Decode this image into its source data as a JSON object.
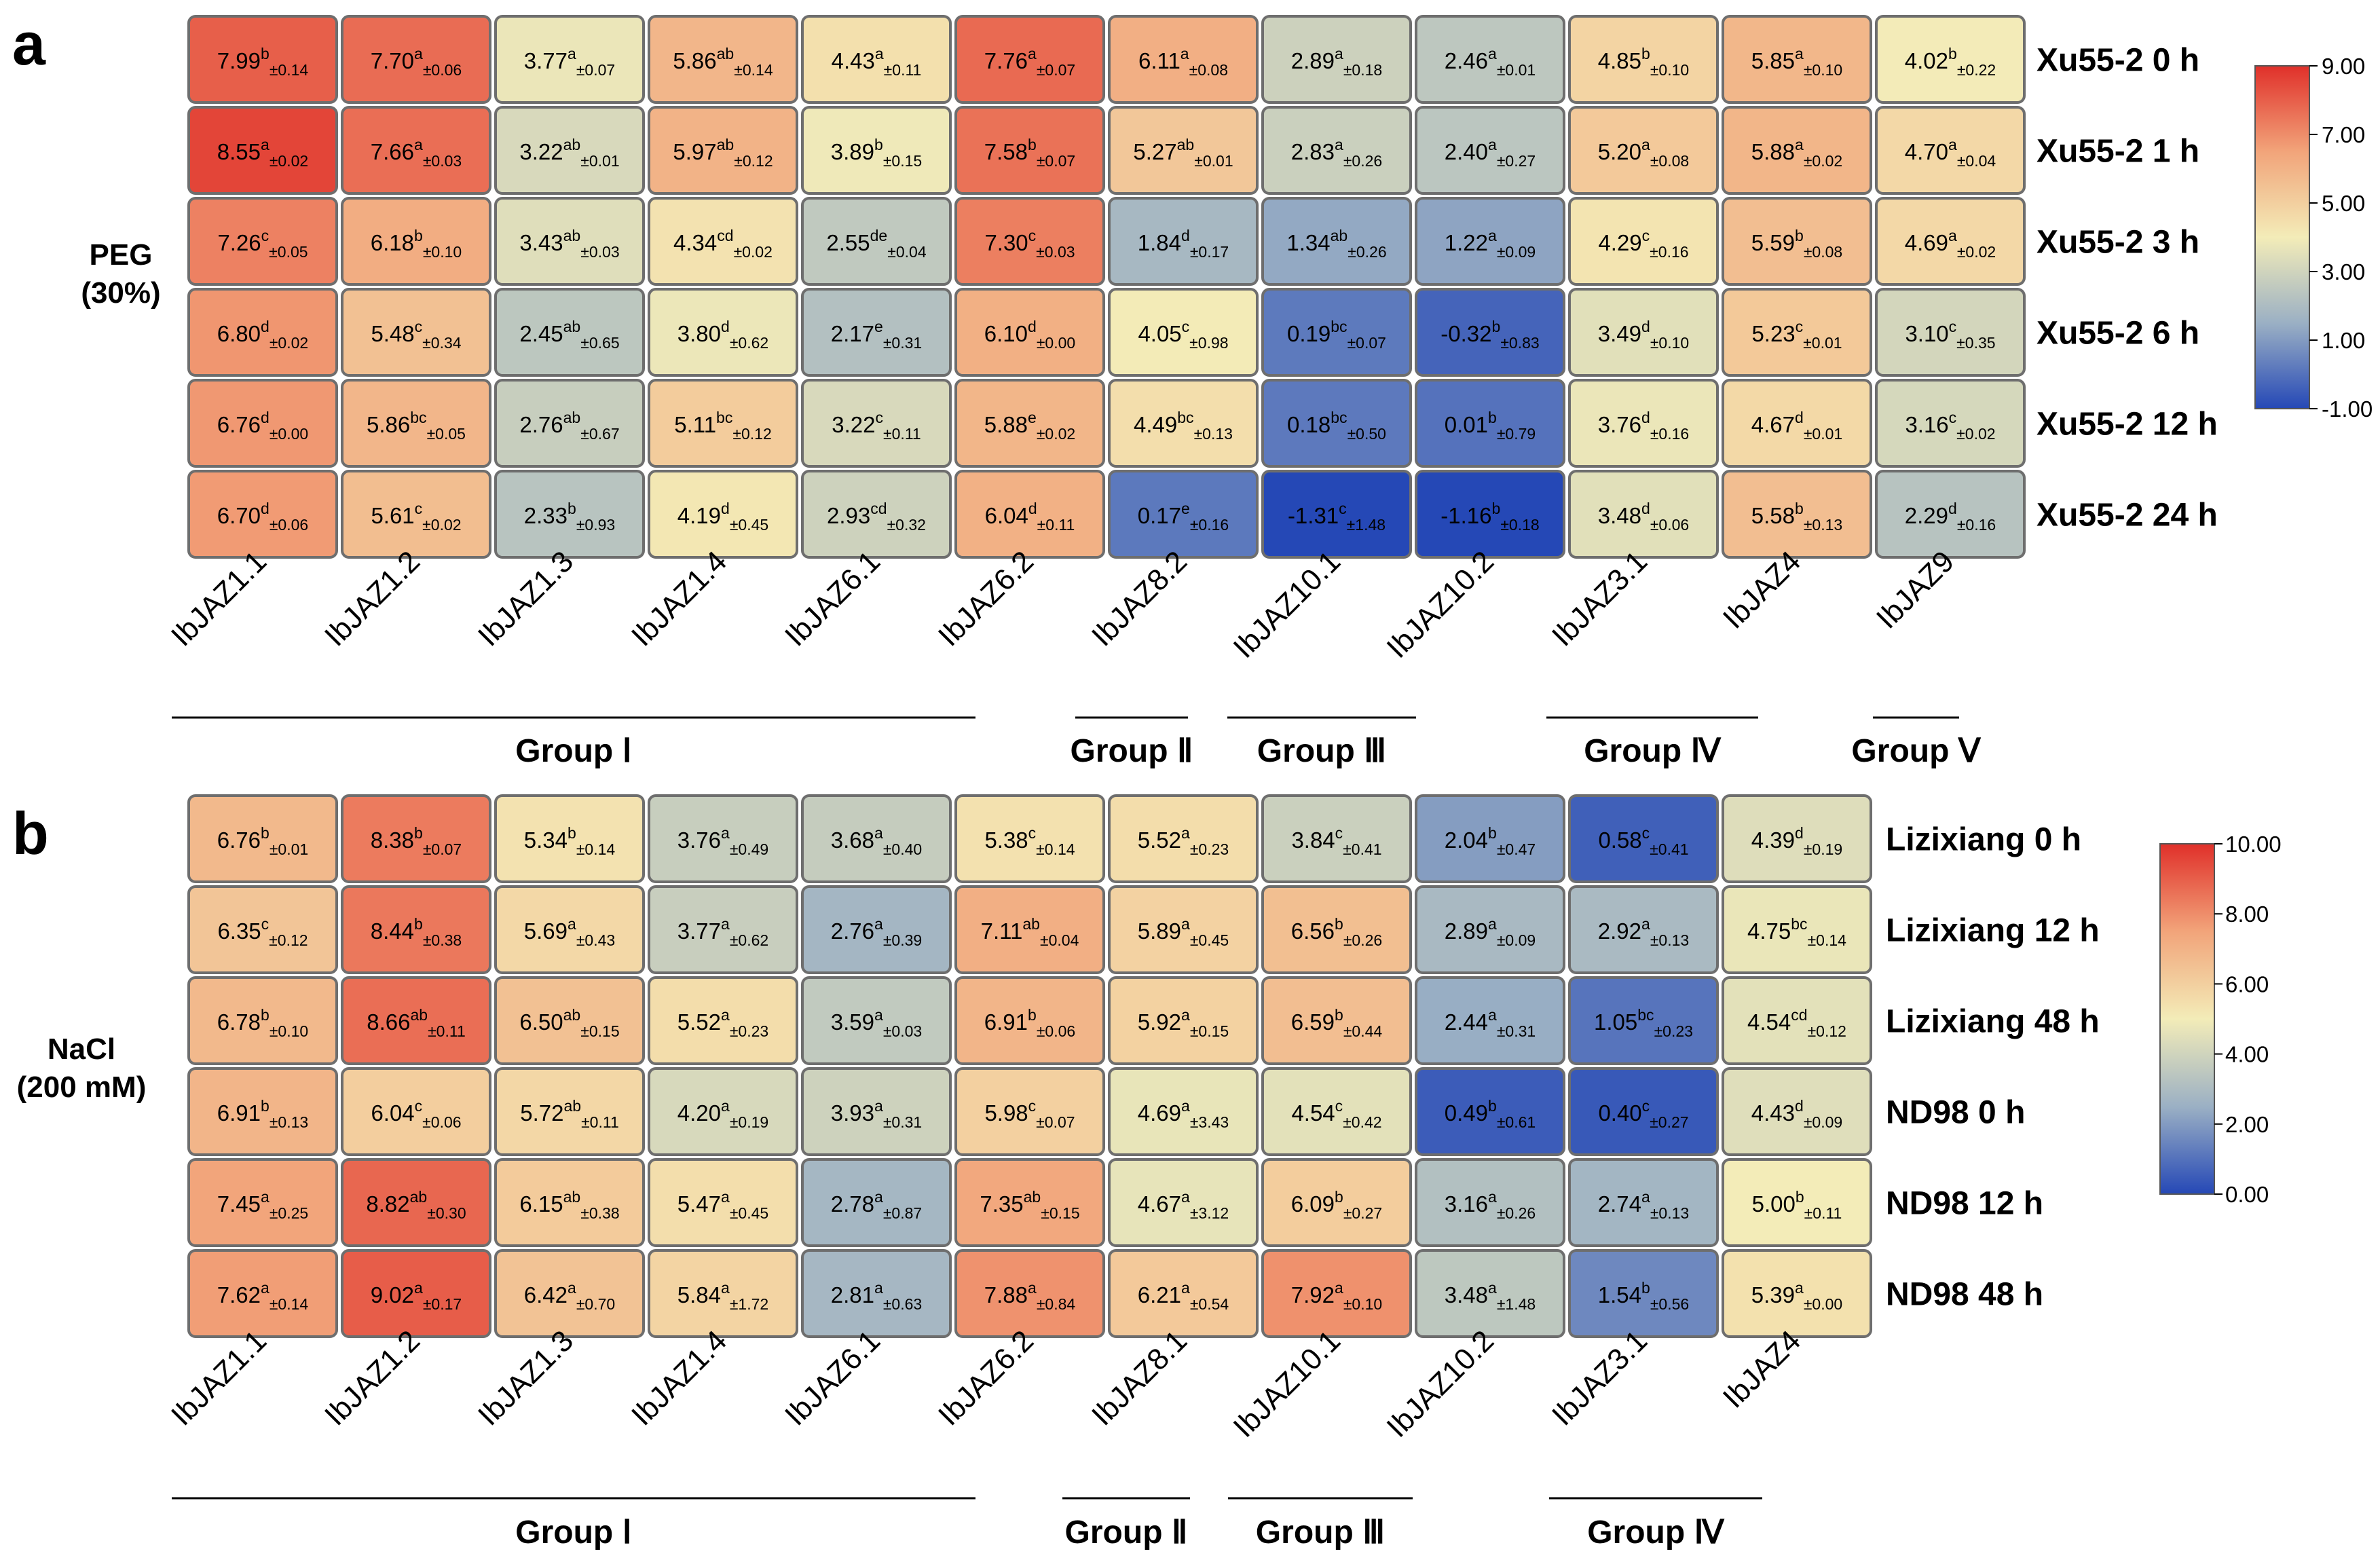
{
  "chart_data": [
    {
      "type": "heatmap",
      "panel": "a",
      "condition": [
        "PEG",
        "(30%)"
      ],
      "genes": [
        "IbJAZ1.1",
        "IbJAZ1.2",
        "IbJAZ1.3",
        "IbJAZ1.4",
        "IbJAZ6.1",
        "IbJAZ6.2",
        "IbJAZ8.2",
        "IbJAZ10.1",
        "IbJAZ10.2",
        "IbJAZ3.1",
        "IbJAZ4",
        "IbJAZ9"
      ],
      "rows": [
        "Xu55-2 0 h",
        "Xu55-2 1 h",
        "Xu55-2 3 h",
        "Xu55-2 6 h",
        "Xu55-2 12 h",
        "Xu55-2 24 h"
      ],
      "values": [
        [
          [
            7.99,
            "b",
            "0.14"
          ],
          [
            7.7,
            "a",
            "0.06"
          ],
          [
            3.77,
            "a",
            "0.07"
          ],
          [
            5.86,
            "ab",
            "0.14"
          ],
          [
            4.43,
            "a",
            "0.11"
          ],
          [
            7.76,
            "a",
            "0.07"
          ],
          [
            6.11,
            "a",
            "0.08"
          ],
          [
            2.89,
            "a",
            "0.18"
          ],
          [
            2.46,
            "a",
            "0.01"
          ],
          [
            4.85,
            "b",
            "0.10"
          ],
          [
            5.85,
            "a",
            "0.10"
          ],
          [
            4.02,
            "b",
            "0.22"
          ]
        ],
        [
          [
            8.55,
            "a",
            "0.02"
          ],
          [
            7.66,
            "a",
            "0.03"
          ],
          [
            3.22,
            "ab",
            "0.01"
          ],
          [
            5.97,
            "ab",
            "0.12"
          ],
          [
            3.89,
            "b",
            "0.15"
          ],
          [
            7.58,
            "b",
            "0.07"
          ],
          [
            5.27,
            "ab",
            "0.01"
          ],
          [
            2.83,
            "a",
            "0.26"
          ],
          [
            2.4,
            "a",
            "0.27"
          ],
          [
            5.2,
            "a",
            "0.08"
          ],
          [
            5.88,
            "a",
            "0.02"
          ],
          [
            4.7,
            "a",
            "0.04"
          ]
        ],
        [
          [
            7.26,
            "c",
            "0.05"
          ],
          [
            6.18,
            "b",
            "0.10"
          ],
          [
            3.43,
            "ab",
            "0.03"
          ],
          [
            4.34,
            "cd",
            "0.02"
          ],
          [
            2.55,
            "de",
            "0.04"
          ],
          [
            7.3,
            "c",
            "0.03"
          ],
          [
            1.84,
            "d",
            "0.17"
          ],
          [
            1.34,
            "ab",
            "0.26"
          ],
          [
            1.22,
            "a",
            "0.09"
          ],
          [
            4.29,
            "c",
            "0.16"
          ],
          [
            5.59,
            "b",
            "0.08"
          ],
          [
            4.69,
            "a",
            "0.02"
          ]
        ],
        [
          [
            6.8,
            "d",
            "0.02"
          ],
          [
            5.48,
            "c",
            "0.34"
          ],
          [
            2.45,
            "ab",
            "0.65"
          ],
          [
            3.8,
            "d",
            "0.62"
          ],
          [
            2.17,
            "e",
            "0.31"
          ],
          [
            6.1,
            "d",
            "0.00"
          ],
          [
            4.05,
            "c",
            "0.98"
          ],
          [
            0.19,
            "bc",
            "0.07"
          ],
          [
            -0.32,
            "b",
            "0.83"
          ],
          [
            3.49,
            "d",
            "0.10"
          ],
          [
            5.23,
            "c",
            "0.01"
          ],
          [
            3.1,
            "c",
            "0.35"
          ]
        ],
        [
          [
            6.76,
            "d",
            "0.00"
          ],
          [
            5.86,
            "bc",
            "0.05"
          ],
          [
            2.76,
            "ab",
            "0.67"
          ],
          [
            5.11,
            "bc",
            "0.12"
          ],
          [
            3.22,
            "c",
            "0.11"
          ],
          [
            5.88,
            "e",
            "0.02"
          ],
          [
            4.49,
            "bc",
            "0.13"
          ],
          [
            0.18,
            "bc",
            "0.50"
          ],
          [
            0.01,
            "b",
            "0.79"
          ],
          [
            3.76,
            "d",
            "0.16"
          ],
          [
            4.67,
            "d",
            "0.01"
          ],
          [
            3.16,
            "c",
            "0.02"
          ]
        ],
        [
          [
            6.7,
            "d",
            "0.06"
          ],
          [
            5.61,
            "c",
            "0.02"
          ],
          [
            2.33,
            "b",
            "0.93"
          ],
          [
            4.19,
            "d",
            "0.45"
          ],
          [
            2.93,
            "cd",
            "0.32"
          ],
          [
            6.04,
            "d",
            "0.11"
          ],
          [
            0.17,
            "e",
            "0.16"
          ],
          [
            -1.31,
            "c",
            "1.48"
          ],
          [
            -1.16,
            "b",
            "0.18"
          ],
          [
            3.48,
            "d",
            "0.06"
          ],
          [
            5.58,
            "b",
            "0.13"
          ],
          [
            2.29,
            "d",
            "0.16"
          ]
        ]
      ],
      "groups": [
        {
          "label": "Group Ⅰ",
          "genes": [
            "IbJAZ1.1",
            "IbJAZ1.2",
            "IbJAZ1.3",
            "IbJAZ1.4",
            "IbJAZ6.1",
            "IbJAZ6.2"
          ]
        },
        {
          "label": "Group Ⅱ",
          "genes": [
            "IbJAZ8.2"
          ]
        },
        {
          "label": "Group Ⅲ",
          "genes": [
            "IbJAZ10.1",
            "IbJAZ10.2"
          ]
        },
        {
          "label": "Group Ⅳ",
          "genes": [
            "IbJAZ3.1",
            "IbJAZ4"
          ]
        },
        {
          "label": "Group Ⅴ",
          "genes": [
            "IbJAZ9"
          ]
        }
      ],
      "colorbar": {
        "min": -1.0,
        "max": 9.0,
        "ticks": [
          "9.00",
          "7.00",
          "5.00",
          "3.00",
          "1.00",
          "-1.00"
        ],
        "tick_values": [
          9,
          7,
          5,
          3,
          1,
          -1
        ]
      }
    },
    {
      "type": "heatmap",
      "panel": "b",
      "condition": [
        "NaCl",
        "(200 mM)"
      ],
      "genes": [
        "IbJAZ1.1",
        "IbJAZ1.2",
        "IbJAZ1.3",
        "IbJAZ1.4",
        "IbJAZ6.1",
        "IbJAZ6.2",
        "IbJAZ8.1",
        "IbJAZ10.1",
        "IbJAZ10.2",
        "IbJAZ3.1",
        "IbJAZ4"
      ],
      "rows": [
        "Lizixiang 0 h",
        "Lizixiang 12 h",
        "Lizixiang 48 h",
        "ND98 0 h",
        "ND98 12 h",
        "ND98 48 h"
      ],
      "values": [
        [
          [
            6.76,
            "b",
            "0.01"
          ],
          [
            8.38,
            "b",
            "0.07"
          ],
          [
            5.34,
            "b",
            "0.14"
          ],
          [
            3.76,
            "a",
            "0.49"
          ],
          [
            3.68,
            "a",
            "0.40"
          ],
          [
            5.38,
            "c",
            "0.14"
          ],
          [
            5.52,
            "a",
            "0.23"
          ],
          [
            3.84,
            "c",
            "0.41"
          ],
          [
            2.04,
            "b",
            "0.47"
          ],
          [
            0.58,
            "c",
            "0.41"
          ],
          [
            4.39,
            "d",
            "0.19"
          ]
        ],
        [
          [
            6.35,
            "c",
            "0.12"
          ],
          [
            8.44,
            "b",
            "0.38"
          ],
          [
            5.69,
            "a",
            "0.43"
          ],
          [
            3.77,
            "a",
            "0.62"
          ],
          [
            2.76,
            "a",
            "0.39"
          ],
          [
            7.11,
            "ab",
            "0.04"
          ],
          [
            5.89,
            "a",
            "0.45"
          ],
          [
            6.56,
            "b",
            "0.26"
          ],
          [
            2.89,
            "a",
            "0.09"
          ],
          [
            2.92,
            "a",
            "0.13"
          ],
          [
            4.75,
            "bc",
            "0.14"
          ]
        ],
        [
          [
            6.78,
            "b",
            "0.10"
          ],
          [
            8.66,
            "ab",
            "0.11"
          ],
          [
            6.5,
            "ab",
            "0.15"
          ],
          [
            5.52,
            "a",
            "0.23"
          ],
          [
            3.59,
            "a",
            "0.03"
          ],
          [
            6.91,
            "b",
            "0.06"
          ],
          [
            5.92,
            "a",
            "0.15"
          ],
          [
            6.59,
            "b",
            "0.44"
          ],
          [
            2.44,
            "a",
            "0.31"
          ],
          [
            1.05,
            "bc",
            "0.23"
          ],
          [
            4.54,
            "cd",
            "0.12"
          ]
        ],
        [
          [
            6.91,
            "b",
            "0.13"
          ],
          [
            6.04,
            "c",
            "0.06"
          ],
          [
            5.72,
            "ab",
            "0.11"
          ],
          [
            4.2,
            "a",
            "0.19"
          ],
          [
            3.93,
            "a",
            "0.31"
          ],
          [
            5.98,
            "c",
            "0.07"
          ],
          [
            4.69,
            "a",
            "3.43"
          ],
          [
            4.54,
            "c",
            "0.42"
          ],
          [
            0.49,
            "b",
            "0.61"
          ],
          [
            0.4,
            "c",
            "0.27"
          ],
          [
            4.43,
            "d",
            "0.09"
          ]
        ],
        [
          [
            7.45,
            "a",
            "0.25"
          ],
          [
            8.82,
            "ab",
            "0.30"
          ],
          [
            6.15,
            "ab",
            "0.38"
          ],
          [
            5.47,
            "a",
            "0.45"
          ],
          [
            2.78,
            "a",
            "0.87"
          ],
          [
            7.35,
            "ab",
            "0.15"
          ],
          [
            4.67,
            "a",
            "3.12"
          ],
          [
            6.09,
            "b",
            "0.27"
          ],
          [
            3.16,
            "a",
            "0.26"
          ],
          [
            2.74,
            "a",
            "0.13"
          ],
          [
            5.0,
            "b",
            "0.11"
          ]
        ],
        [
          [
            7.62,
            "a",
            "0.14"
          ],
          [
            9.02,
            "a",
            "0.17"
          ],
          [
            6.42,
            "a",
            "0.70"
          ],
          [
            5.84,
            "a",
            "1.72"
          ],
          [
            2.81,
            "a",
            "0.63"
          ],
          [
            7.88,
            "a",
            "0.84"
          ],
          [
            6.21,
            "a",
            "0.54"
          ],
          [
            7.92,
            "a",
            "0.10"
          ],
          [
            3.48,
            "a",
            "1.48"
          ],
          [
            1.54,
            "b",
            "0.56"
          ],
          [
            5.39,
            "a",
            "0.00"
          ]
        ]
      ],
      "groups": [
        {
          "label": "Group Ⅰ",
          "genes": [
            "IbJAZ1.1",
            "IbJAZ1.2",
            "IbJAZ1.3",
            "IbJAZ1.4",
            "IbJAZ6.1",
            "IbJAZ6.2"
          ]
        },
        {
          "label": "Group Ⅱ",
          "genes": [
            "IbJAZ8.1"
          ]
        },
        {
          "label": "Group Ⅲ",
          "genes": [
            "IbJAZ10.1"
          ]
        },
        {
          "label": "Group Ⅳ",
          "genes": [
            "IbJAZ10.2",
            "IbJAZ3.1",
            "IbJAZ4"
          ]
        }
      ],
      "colorbar": {
        "min": 0.0,
        "max": 10.0,
        "ticks": [
          "10.00",
          "8.00",
          "6.00",
          "4.00",
          "2.00",
          "0.00"
        ],
        "tick_values": [
          10,
          8,
          6,
          4,
          2,
          0
        ]
      }
    }
  ],
  "colors": {
    "scale": [
      "#2548b6",
      "#9bb0c4",
      "#f3ecb8",
      "#f2a47a",
      "#e0302a"
    ],
    "cell_border": "#6e6e6e"
  }
}
